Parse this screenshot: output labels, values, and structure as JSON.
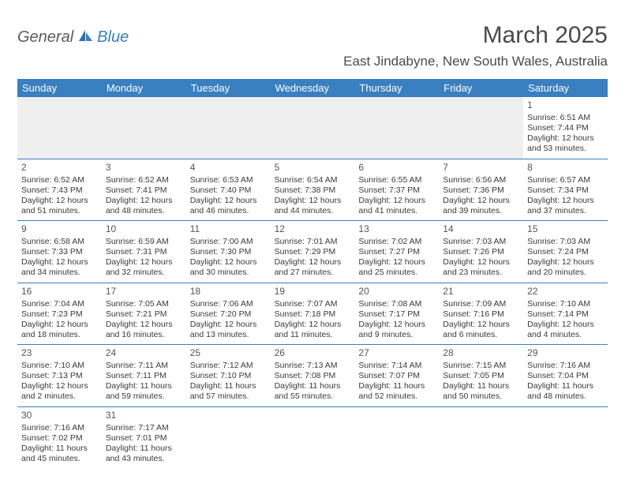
{
  "brand": {
    "part1": "General",
    "part2": "Blue"
  },
  "title": "March 2025",
  "location": "East Jindabyne, New South Wales, Australia",
  "colors": {
    "header_bg": "#3a7fbf",
    "header_text": "#ffffff",
    "border": "#3a7fbf",
    "blank_bg": "#efefef",
    "text": "#3a3a3a",
    "title_color": "#4a4a4a"
  },
  "layout": {
    "columns": 7,
    "cell_fontsize": 10.5,
    "daynum_fontsize": 12,
    "header_fontsize": 13,
    "title_fontsize": 30,
    "location_fontsize": 17
  },
  "weekdays": [
    "Sunday",
    "Monday",
    "Tuesday",
    "Wednesday",
    "Thursday",
    "Friday",
    "Saturday"
  ],
  "leading_blanks": 6,
  "days": [
    {
      "n": 1,
      "sunrise": "6:51 AM",
      "sunset": "7:44 PM",
      "daylight": "12 hours and 53 minutes."
    },
    {
      "n": 2,
      "sunrise": "6:52 AM",
      "sunset": "7:43 PM",
      "daylight": "12 hours and 51 minutes."
    },
    {
      "n": 3,
      "sunrise": "6:52 AM",
      "sunset": "7:41 PM",
      "daylight": "12 hours and 48 minutes."
    },
    {
      "n": 4,
      "sunrise": "6:53 AM",
      "sunset": "7:40 PM",
      "daylight": "12 hours and 46 minutes."
    },
    {
      "n": 5,
      "sunrise": "6:54 AM",
      "sunset": "7:38 PM",
      "daylight": "12 hours and 44 minutes."
    },
    {
      "n": 6,
      "sunrise": "6:55 AM",
      "sunset": "7:37 PM",
      "daylight": "12 hours and 41 minutes."
    },
    {
      "n": 7,
      "sunrise": "6:56 AM",
      "sunset": "7:36 PM",
      "daylight": "12 hours and 39 minutes."
    },
    {
      "n": 8,
      "sunrise": "6:57 AM",
      "sunset": "7:34 PM",
      "daylight": "12 hours and 37 minutes."
    },
    {
      "n": 9,
      "sunrise": "6:58 AM",
      "sunset": "7:33 PM",
      "daylight": "12 hours and 34 minutes."
    },
    {
      "n": 10,
      "sunrise": "6:59 AM",
      "sunset": "7:31 PM",
      "daylight": "12 hours and 32 minutes."
    },
    {
      "n": 11,
      "sunrise": "7:00 AM",
      "sunset": "7:30 PM",
      "daylight": "12 hours and 30 minutes."
    },
    {
      "n": 12,
      "sunrise": "7:01 AM",
      "sunset": "7:29 PM",
      "daylight": "12 hours and 27 minutes."
    },
    {
      "n": 13,
      "sunrise": "7:02 AM",
      "sunset": "7:27 PM",
      "daylight": "12 hours and 25 minutes."
    },
    {
      "n": 14,
      "sunrise": "7:03 AM",
      "sunset": "7:26 PM",
      "daylight": "12 hours and 23 minutes."
    },
    {
      "n": 15,
      "sunrise": "7:03 AM",
      "sunset": "7:24 PM",
      "daylight": "12 hours and 20 minutes."
    },
    {
      "n": 16,
      "sunrise": "7:04 AM",
      "sunset": "7:23 PM",
      "daylight": "12 hours and 18 minutes."
    },
    {
      "n": 17,
      "sunrise": "7:05 AM",
      "sunset": "7:21 PM",
      "daylight": "12 hours and 16 minutes."
    },
    {
      "n": 18,
      "sunrise": "7:06 AM",
      "sunset": "7:20 PM",
      "daylight": "12 hours and 13 minutes."
    },
    {
      "n": 19,
      "sunrise": "7:07 AM",
      "sunset": "7:18 PM",
      "daylight": "12 hours and 11 minutes."
    },
    {
      "n": 20,
      "sunrise": "7:08 AM",
      "sunset": "7:17 PM",
      "daylight": "12 hours and 9 minutes."
    },
    {
      "n": 21,
      "sunrise": "7:09 AM",
      "sunset": "7:16 PM",
      "daylight": "12 hours and 6 minutes."
    },
    {
      "n": 22,
      "sunrise": "7:10 AM",
      "sunset": "7:14 PM",
      "daylight": "12 hours and 4 minutes."
    },
    {
      "n": 23,
      "sunrise": "7:10 AM",
      "sunset": "7:13 PM",
      "daylight": "12 hours and 2 minutes."
    },
    {
      "n": 24,
      "sunrise": "7:11 AM",
      "sunset": "7:11 PM",
      "daylight": "11 hours and 59 minutes."
    },
    {
      "n": 25,
      "sunrise": "7:12 AM",
      "sunset": "7:10 PM",
      "daylight": "11 hours and 57 minutes."
    },
    {
      "n": 26,
      "sunrise": "7:13 AM",
      "sunset": "7:08 PM",
      "daylight": "11 hours and 55 minutes."
    },
    {
      "n": 27,
      "sunrise": "7:14 AM",
      "sunset": "7:07 PM",
      "daylight": "11 hours and 52 minutes."
    },
    {
      "n": 28,
      "sunrise": "7:15 AM",
      "sunset": "7:05 PM",
      "daylight": "11 hours and 50 minutes."
    },
    {
      "n": 29,
      "sunrise": "7:16 AM",
      "sunset": "7:04 PM",
      "daylight": "11 hours and 48 minutes."
    },
    {
      "n": 30,
      "sunrise": "7:16 AM",
      "sunset": "7:02 PM",
      "daylight": "11 hours and 45 minutes."
    },
    {
      "n": 31,
      "sunrise": "7:17 AM",
      "sunset": "7:01 PM",
      "daylight": "11 hours and 43 minutes."
    }
  ],
  "labels": {
    "sunrise_prefix": "Sunrise: ",
    "sunset_prefix": "Sunset: ",
    "daylight_prefix": "Daylight: "
  }
}
